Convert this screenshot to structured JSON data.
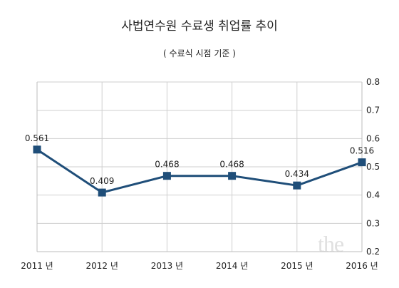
{
  "chart_data": {
    "type": "line",
    "title": "사법연수원 수료생 취업률 추이",
    "subtitle": "( 수료식 시점 기준 )",
    "categories": [
      "2011 년",
      "2012 년",
      "2013 년",
      "2014 년",
      "2015 년",
      "2016 년"
    ],
    "series": [
      {
        "values": [
          0.561,
          0.409,
          0.468,
          0.468,
          0.434,
          0.516
        ]
      }
    ],
    "data_labels": [
      "0.561",
      "0.409",
      "0.468",
      "0.468",
      "0.434",
      "0.516"
    ],
    "y_ticks": [
      "0.2",
      "0.3",
      "0.4",
      "0.5",
      "0.6",
      "0.7",
      "0.8"
    ],
    "ylim": [
      0.2,
      0.8
    ],
    "y_axis_side": "right",
    "grid": true,
    "line_color": "#1f4e79",
    "marker_color": "#1f4e79",
    "grid_color": "#cfcfcf"
  },
  "watermark": "the"
}
